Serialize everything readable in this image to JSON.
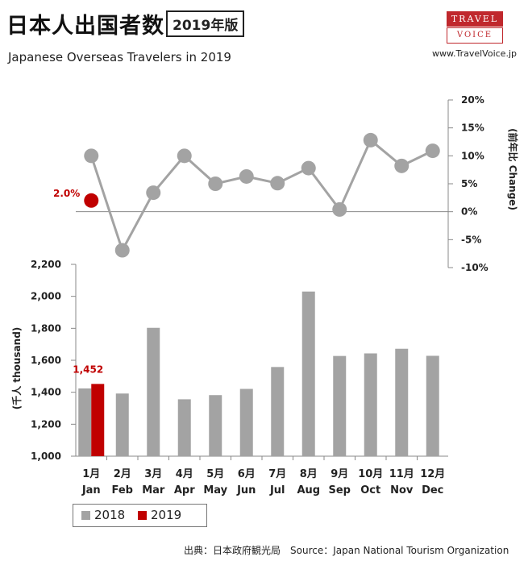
{
  "header": {
    "title": "日本人出国者数",
    "edition": "2019年版",
    "subtitle": "Japanese Overseas Travelers in 2019",
    "logo_top": "TRAVEL",
    "logo_bottom": "VOICE",
    "site": "www.TravelVoice.jp"
  },
  "chart_data": [
    {
      "type": "line",
      "ylabel": "(前年比  Change)",
      "ylim": [
        -10,
        20
      ],
      "yticks": [
        "20%",
        "15%",
        "10%",
        "5%",
        "0%",
        "-5%",
        "-10%"
      ],
      "yticks_values": [
        20,
        15,
        10,
        5,
        0,
        -5,
        -10
      ],
      "categories": [
        "1月 Jan",
        "2月 Feb",
        "3月 Mar",
        "4月 Apr",
        "5月 May",
        "6月 Jun",
        "7月 Jul",
        "8月 Aug",
        "9月 Sep",
        "10月 Oct",
        "11月 Nov",
        "12月 Dec"
      ],
      "series": [
        {
          "name": "2018",
          "values": [
            10.0,
            -6.9,
            3.4,
            10.0,
            5.0,
            6.3,
            5.1,
            7.8,
            0.4,
            12.8,
            8.2,
            10.9
          ],
          "color": "#a3a3a3"
        },
        {
          "name": "2019",
          "values": [
            2.0,
            null,
            null,
            null,
            null,
            null,
            null,
            null,
            null,
            null,
            null,
            null
          ],
          "color": "#c00000"
        }
      ],
      "annotations": [
        {
          "text": "2.0%",
          "category": "1月 Jan",
          "series": "2019"
        }
      ],
      "grid": false
    },
    {
      "type": "bar",
      "ylabel": "(千人  thousand)",
      "ylim": [
        1000,
        2200
      ],
      "yticks": [
        "2,200",
        "2,000",
        "1,800",
        "1,600",
        "1,400",
        "1,200",
        "1,000"
      ],
      "yticks_values": [
        2200,
        2000,
        1800,
        1600,
        1400,
        1200,
        1000
      ],
      "categories_top": [
        "1月",
        "2月",
        "3月",
        "4月",
        "5月",
        "6月",
        "7月",
        "8月",
        "9月",
        "10月",
        "11月",
        "12月"
      ],
      "categories_bottom": [
        "Jan",
        "Feb",
        "Mar",
        "Apr",
        "May",
        "Jun",
        "Jul",
        "Aug",
        "Sep",
        "Oct",
        "Nov",
        "Dec"
      ],
      "series": [
        {
          "name": "2018",
          "values": [
            1424,
            1392,
            1803,
            1356,
            1382,
            1421,
            1558,
            2030,
            1627,
            1643,
            1672,
            1628
          ],
          "color": "#a3a3a3"
        },
        {
          "name": "2019",
          "values": [
            1452,
            null,
            null,
            null,
            null,
            null,
            null,
            null,
            null,
            null,
            null,
            null
          ],
          "color": "#c00000"
        }
      ],
      "annotations": [
        {
          "text": "1,452",
          "category": "1月",
          "series": "2019"
        }
      ],
      "grid": false
    }
  ],
  "legend": [
    {
      "label": "2018",
      "color": "#a3a3a3"
    },
    {
      "label": "2019",
      "color": "#c00000"
    }
  ],
  "footer": {
    "source": "出典：日本政府観光局　Source：Japan  National Tourism  Organization"
  }
}
